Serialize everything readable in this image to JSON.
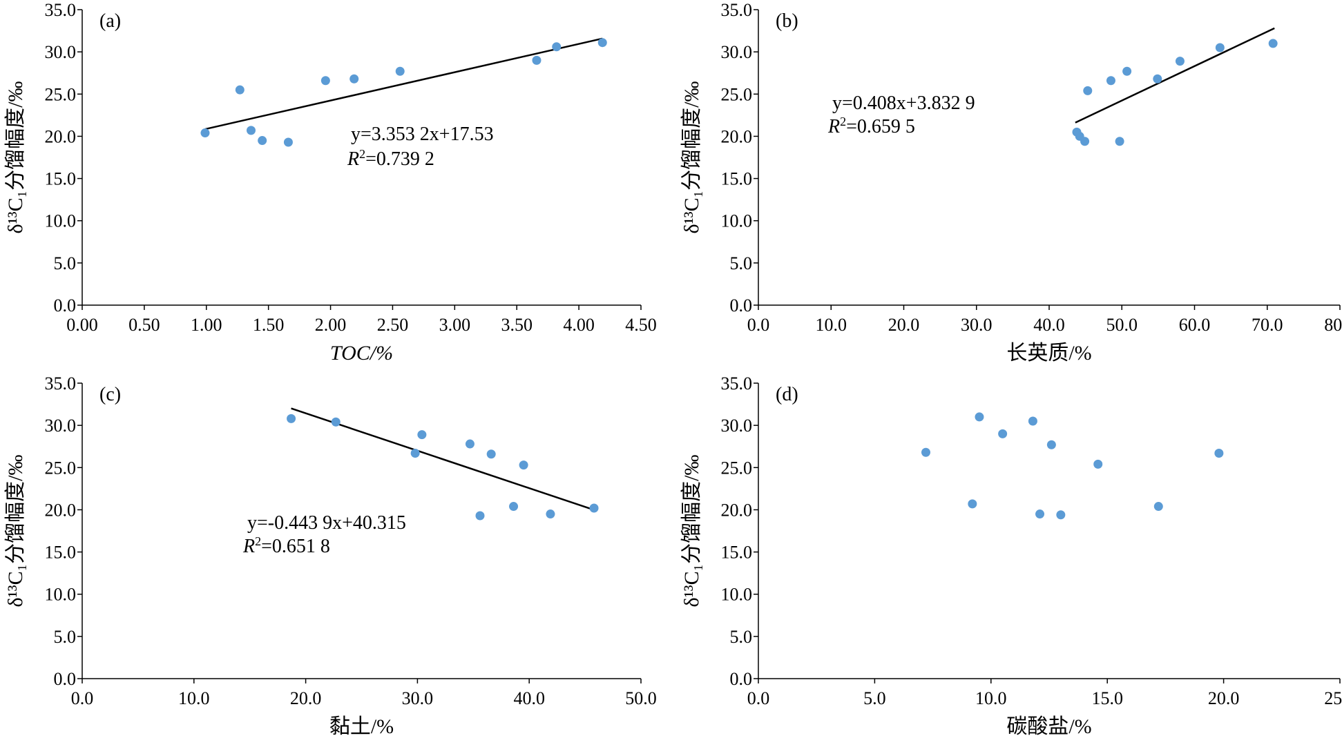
{
  "chart_data": [
    {
      "type": "scatter",
      "panel_label": "(a)",
      "xlabel": "TOC/%",
      "ylabel": "δ¹³C₁分馏幅度/‰",
      "xlim": [
        0,
        4.5
      ],
      "ylim": [
        0,
        35
      ],
      "x_ticks": [
        "0.00",
        "0.50",
        "1.00",
        "1.50",
        "2.00",
        "2.50",
        "3.00",
        "3.50",
        "4.00",
        "4.50"
      ],
      "y_ticks": [
        "0.0",
        "5.0",
        "10.0",
        "15.0",
        "20.0",
        "25.0",
        "30.0",
        "35.0"
      ],
      "points": [
        {
          "x": 0.99,
          "y": 20.4
        },
        {
          "x": 1.27,
          "y": 25.5
        },
        {
          "x": 1.36,
          "y": 20.7
        },
        {
          "x": 1.45,
          "y": 19.5
        },
        {
          "x": 1.66,
          "y": 19.3
        },
        {
          "x": 1.96,
          "y": 26.6
        },
        {
          "x": 2.19,
          "y": 26.8
        },
        {
          "x": 2.56,
          "y": 27.7
        },
        {
          "x": 3.66,
          "y": 29.0
        },
        {
          "x": 3.82,
          "y": 30.6
        },
        {
          "x": 4.19,
          "y": 31.1
        }
      ],
      "trendline": {
        "slope": 3.3532,
        "intercept": 17.53,
        "x_from": 0.99,
        "x_to": 4.19
      },
      "equation": {
        "line1": "y=3.353 2x+17.53",
        "r2_value": "=0.739 2"
      }
    },
    {
      "type": "scatter",
      "panel_label": "(b)",
      "xlabel": "长英质/%",
      "ylabel": "δ¹³C₁分馏幅度/‰",
      "xlim": [
        0,
        80
      ],
      "ylim": [
        0,
        35
      ],
      "x_ticks": [
        "0.0",
        "10.0",
        "20.0",
        "30.0",
        "40.0",
        "50.0",
        "60.0",
        "70.0",
        "80.0"
      ],
      "y_ticks": [
        "0.0",
        "5.0",
        "10.0",
        "15.0",
        "20.0",
        "25.0",
        "30.0",
        "35.0"
      ],
      "points": [
        {
          "x": 43.8,
          "y": 20.5
        },
        {
          "x": 44.2,
          "y": 20.0
        },
        {
          "x": 44.9,
          "y": 19.4
        },
        {
          "x": 45.3,
          "y": 25.4
        },
        {
          "x": 48.5,
          "y": 26.6
        },
        {
          "x": 49.7,
          "y": 19.4
        },
        {
          "x": 50.7,
          "y": 27.7
        },
        {
          "x": 54.9,
          "y": 26.8
        },
        {
          "x": 58.0,
          "y": 28.9
        },
        {
          "x": 63.5,
          "y": 30.5
        },
        {
          "x": 70.8,
          "y": 31.0
        }
      ],
      "trendline": {
        "slope": 0.408,
        "intercept": 3.8329,
        "x_from": 43.6,
        "x_to": 71.0
      },
      "equation": {
        "line1": "y=0.408x+3.832 9",
        "r2_value": "=0.659 5"
      }
    },
    {
      "type": "scatter",
      "panel_label": "(c)",
      "xlabel": "黏土/%",
      "ylabel": "δ¹³C₁分馏幅度/‰",
      "xlim": [
        0,
        50
      ],
      "ylim": [
        0,
        35
      ],
      "x_ticks": [
        "0.0",
        "10.0",
        "20.0",
        "30.0",
        "40.0",
        "50.0"
      ],
      "y_ticks": [
        "0.0",
        "5.0",
        "10.0",
        "15.0",
        "20.0",
        "25.0",
        "30.0",
        "35.0"
      ],
      "points": [
        {
          "x": 18.7,
          "y": 30.8
        },
        {
          "x": 22.7,
          "y": 30.4
        },
        {
          "x": 29.8,
          "y": 26.7
        },
        {
          "x": 30.4,
          "y": 28.9
        },
        {
          "x": 34.7,
          "y": 27.8
        },
        {
          "x": 35.6,
          "y": 19.3
        },
        {
          "x": 36.6,
          "y": 26.6
        },
        {
          "x": 38.6,
          "y": 20.4
        },
        {
          "x": 39.5,
          "y": 25.3
        },
        {
          "x": 41.9,
          "y": 19.5
        },
        {
          "x": 45.8,
          "y": 20.2
        }
      ],
      "trendline": {
        "slope": -0.4439,
        "intercept": 40.315,
        "x_from": 18.7,
        "x_to": 45.8
      },
      "equation": {
        "line1": "y=-0.443 9x+40.315",
        "r2_value": "=0.651 8"
      }
    },
    {
      "type": "scatter",
      "panel_label": "(d)",
      "xlabel": "碳酸盐/%",
      "ylabel": "δ¹³C₁分馏幅度/‰",
      "xlim": [
        0,
        25
      ],
      "ylim": [
        0,
        35
      ],
      "x_ticks": [
        "0.0",
        "5.0",
        "10.0",
        "15.0",
        "20.0",
        "25.0"
      ],
      "y_ticks": [
        "0.0",
        "5.0",
        "10.0",
        "15.0",
        "20.0",
        "25.0",
        "30.0",
        "35.0"
      ],
      "points": [
        {
          "x": 7.2,
          "y": 26.8
        },
        {
          "x": 9.2,
          "y": 20.7
        },
        {
          "x": 9.5,
          "y": 31.0
        },
        {
          "x": 10.5,
          "y": 29.0
        },
        {
          "x": 11.8,
          "y": 30.5
        },
        {
          "x": 12.1,
          "y": 19.5
        },
        {
          "x": 12.6,
          "y": 27.7
        },
        {
          "x": 13.0,
          "y": 19.4
        },
        {
          "x": 14.6,
          "y": 25.4
        },
        {
          "x": 17.2,
          "y": 20.4
        },
        {
          "x": 19.8,
          "y": 26.7
        }
      ]
    }
  ],
  "colors": {
    "points": "#5b9bd5",
    "trendline": "#000000",
    "axes": "#000000"
  }
}
